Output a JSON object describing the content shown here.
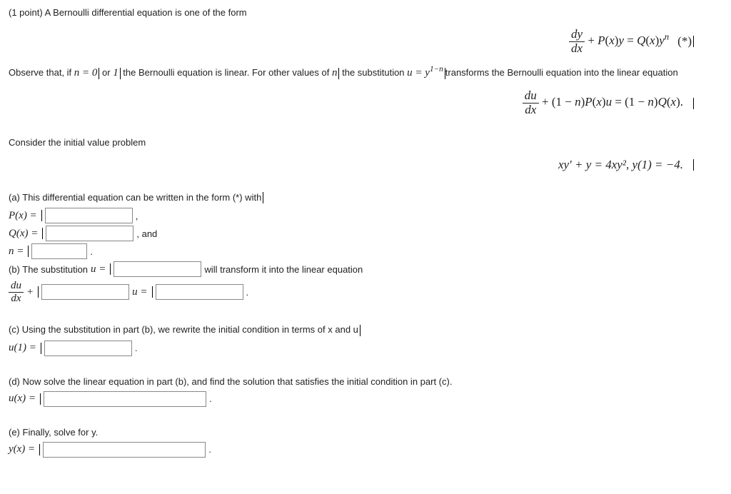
{
  "intro": {
    "points": "(1 point) A Bernoulli differential equation is one of the form",
    "eq1_tag": "(*)",
    "observe": "Observe that, if ",
    "n0": "n = 0",
    "or": " or ",
    "n1": "1",
    "obs2": " the Bernoulli equation is linear. For other values of ",
    "nvar": "n",
    "obs3": " the substitution ",
    "sub": "u = y",
    "subexp": "1−n",
    "obs4": "transforms the Bernoulli equation into the linear equation"
  },
  "ivp": {
    "title": "Consider the initial value problem",
    "eq": "xy′ + y = 4xy²,   y(1) = −4."
  },
  "parts": {
    "a": "(a) This differential equation can be written in the form (*) with",
    "Px": "P(x) =",
    "Qx": "Q(x) =",
    "n": "n =",
    "and": ", and",
    "b": "(b) The substitution ",
    "u": "u =",
    "b2": " will transform it into the linear equation",
    "du": "du",
    "dx": "dx",
    "plus": "+",
    "ueq": "u =",
    "c": "(c) Using the substitution in part (b), we rewrite the initial condition in terms of x and u",
    "u1": "u(1) =",
    "d": "(d) Now solve the linear equation in part (b), and find the solution that satisfies the initial condition in part (c).",
    "ux": "u(x) =",
    "e": "(e) Finally, solve for y.",
    "yx": "y(x) ="
  },
  "input_widths": {
    "small": "90px",
    "med": "115px",
    "large": "220px"
  }
}
